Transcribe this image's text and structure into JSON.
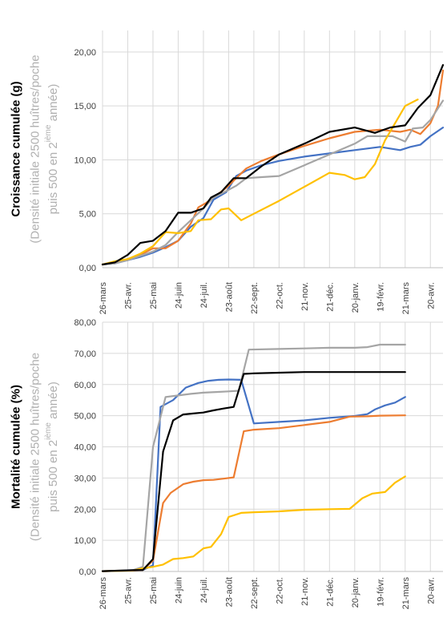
{
  "chart_data": [
    {
      "type": "line",
      "ylabel_main": "Croissance cumulée (g)",
      "ylabel_sub_1": "(Densité initiale 2500 huîtres/poche",
      "ylabel_sub_2a": "puis 500 en 2",
      "ylabel_sub_sup": "ième",
      "ylabel_sub_2b": " année)",
      "ylim": [
        0,
        22
      ],
      "y_ticks": [
        "0,00",
        "5,00",
        "10,00",
        "15,00",
        "20,00"
      ],
      "x_ticks": [
        "26-mars",
        "25-avr.",
        "25-mai",
        "24-juin",
        "24-juil.",
        "23-août",
        "22-sept.",
        "22-oct.",
        "21-nov.",
        "21-déc.",
        "20-janv.",
        "19-févr.",
        "21-mars",
        "20-avr."
      ],
      "grid": true,
      "series": [
        {
          "color": "#4472c4",
          "values": [
            [
              0,
              0.3
            ],
            [
              0.5,
              0.4
            ],
            [
              1.0,
              0.7
            ],
            [
              1.5,
              1.0
            ],
            [
              2.0,
              1.4
            ],
            [
              2.5,
              1.9
            ],
            [
              3.0,
              2.5
            ],
            [
              3.5,
              3.8
            ],
            [
              4.0,
              4.6
            ],
            [
              4.4,
              6.3
            ],
            [
              4.9,
              7.0
            ],
            [
              5.3,
              8.5
            ],
            [
              5.7,
              9.0
            ],
            [
              6.3,
              9.5
            ],
            [
              7.0,
              9.9
            ],
            [
              8.0,
              10.3
            ],
            [
              9.0,
              10.6
            ],
            [
              10.0,
              10.9
            ],
            [
              11.0,
              11.2
            ],
            [
              11.8,
              10.9
            ],
            [
              12.2,
              11.2
            ],
            [
              12.6,
              11.4
            ],
            [
              13.0,
              12.2
            ],
            [
              13.5,
              13.0
            ]
          ]
        },
        {
          "color": "#ed7d31",
          "values": [
            [
              0,
              0.3
            ],
            [
              0.5,
              0.5
            ],
            [
              1.0,
              0.8
            ],
            [
              1.5,
              1.2
            ],
            [
              2.0,
              1.8
            ],
            [
              2.5,
              1.8
            ],
            [
              3.0,
              2.5
            ],
            [
              3.5,
              4.1
            ],
            [
              3.8,
              5.6
            ],
            [
              4.1,
              6.0
            ],
            [
              4.4,
              6.5
            ],
            [
              4.9,
              7.4
            ],
            [
              5.3,
              8.3
            ],
            [
              5.7,
              9.2
            ],
            [
              6.3,
              9.9
            ],
            [
              7.0,
              10.5
            ],
            [
              8.0,
              11.3
            ],
            [
              9.0,
              12.0
            ],
            [
              10.0,
              12.6
            ],
            [
              11.0,
              12.8
            ],
            [
              11.8,
              12.6
            ],
            [
              12.2,
              12.8
            ],
            [
              12.6,
              12.4
            ],
            [
              13.0,
              13.4
            ],
            [
              13.3,
              15.0
            ],
            [
              13.5,
              18.3
            ]
          ]
        },
        {
          "color": "#a5a5a5",
          "values": [
            [
              0,
              0.3
            ],
            [
              0.5,
              0.4
            ],
            [
              1.0,
              0.7
            ],
            [
              1.5,
              1.1
            ],
            [
              2.0,
              1.5
            ],
            [
              2.5,
              2.1
            ],
            [
              3.0,
              3.3
            ],
            [
              3.5,
              4.4
            ],
            [
              4.0,
              5.5
            ],
            [
              4.4,
              6.5
            ],
            [
              4.9,
              7.1
            ],
            [
              5.3,
              7.6
            ],
            [
              5.7,
              8.3
            ],
            [
              6.3,
              8.4
            ],
            [
              7.0,
              8.5
            ],
            [
              8.0,
              9.5
            ],
            [
              9.0,
              10.5
            ],
            [
              10.0,
              11.5
            ],
            [
              10.5,
              12.2
            ],
            [
              11.5,
              12.2
            ],
            [
              12.0,
              11.7
            ],
            [
              12.3,
              12.9
            ],
            [
              12.7,
              13.0
            ],
            [
              13.0,
              13.7
            ],
            [
              13.5,
              15.5
            ]
          ]
        },
        {
          "color": "#ffc000",
          "values": [
            [
              0,
              0.3
            ],
            [
              0.5,
              0.6
            ],
            [
              1.0,
              0.8
            ],
            [
              1.5,
              1.3
            ],
            [
              2.0,
              2.0
            ],
            [
              2.5,
              3.3
            ],
            [
              3.0,
              3.2
            ],
            [
              3.5,
              3.4
            ],
            [
              3.8,
              4.4
            ],
            [
              4.3,
              4.5
            ],
            [
              4.7,
              5.4
            ],
            [
              5.0,
              5.5
            ],
            [
              5.5,
              4.4
            ],
            [
              6.0,
              5.0
            ],
            [
              7.0,
              6.2
            ],
            [
              8.0,
              7.5
            ],
            [
              9.0,
              8.8
            ],
            [
              9.6,
              8.6
            ],
            [
              10.0,
              8.2
            ],
            [
              10.4,
              8.4
            ],
            [
              10.8,
              9.6
            ],
            [
              11.2,
              11.8
            ],
            [
              11.6,
              13.4
            ],
            [
              12.0,
              15.0
            ],
            [
              12.5,
              15.6
            ]
          ]
        },
        {
          "color": "#000000",
          "values": [
            [
              0,
              0.3
            ],
            [
              0.5,
              0.5
            ],
            [
              1.0,
              1.2
            ],
            [
              1.5,
              2.3
            ],
            [
              2.0,
              2.5
            ],
            [
              2.5,
              3.4
            ],
            [
              3.0,
              5.1
            ],
            [
              3.5,
              5.1
            ],
            [
              4.0,
              5.5
            ],
            [
              4.3,
              6.5
            ],
            [
              4.7,
              7.0
            ],
            [
              5.2,
              8.3
            ],
            [
              5.7,
              8.3
            ],
            [
              6.3,
              9.4
            ],
            [
              7.0,
              10.5
            ],
            [
              8.0,
              11.5
            ],
            [
              9.0,
              12.6
            ],
            [
              10.0,
              13.0
            ],
            [
              10.8,
              12.5
            ],
            [
              11.4,
              13.0
            ],
            [
              12.0,
              13.2
            ],
            [
              12.5,
              14.8
            ],
            [
              13.0,
              16.0
            ],
            [
              13.5,
              18.8
            ]
          ]
        }
      ]
    },
    {
      "type": "line",
      "ylabel_main": "Mortalité cumulée (%)",
      "ylabel_sub_1": "(Densité initiale 2500 huîtres/poche",
      "ylabel_sub_2a": "puis 500 en 2",
      "ylabel_sub_sup": "ième",
      "ylabel_sub_2b": " année)",
      "ylim": [
        0,
        80
      ],
      "y_ticks": [
        "0,00",
        "10,00",
        "20,00",
        "30,00",
        "40,00",
        "50,00",
        "60,00",
        "70,00",
        "80,00"
      ],
      "x_ticks": [
        "26-mars",
        "25-avr.",
        "25-mai",
        "24-juin",
        "24-juil.",
        "23-août",
        "22-sept.",
        "22-oct.",
        "21-nov.",
        "21-déc.",
        "20-janv.",
        "19-févr.",
        "21-mars",
        "20-avr."
      ],
      "grid": true,
      "series": [
        {
          "color": "#4472c4",
          "values": [
            [
              0,
              0.1
            ],
            [
              1.2,
              0.3
            ],
            [
              1.6,
              0.5
            ],
            [
              2.0,
              2.0
            ],
            [
              2.3,
              52.8
            ],
            [
              2.8,
              55.0
            ],
            [
              3.3,
              59.0
            ],
            [
              3.8,
              60.5
            ],
            [
              4.2,
              61.2
            ],
            [
              4.6,
              61.5
            ],
            [
              5.0,
              61.6
            ],
            [
              5.5,
              61.5
            ],
            [
              6.0,
              47.5
            ],
            [
              7.0,
              48.0
            ],
            [
              8.0,
              48.5
            ],
            [
              9.0,
              49.3
            ],
            [
              10.0,
              49.9
            ],
            [
              10.5,
              50.5
            ],
            [
              10.8,
              52.0
            ],
            [
              11.2,
              53.3
            ],
            [
              11.6,
              54.2
            ],
            [
              12.0,
              56.0
            ]
          ]
        },
        {
          "color": "#ed7d31",
          "values": [
            [
              0,
              0.1
            ],
            [
              1.2,
              0.3
            ],
            [
              1.6,
              0.5
            ],
            [
              2.0,
              3.5
            ],
            [
              2.4,
              22.0
            ],
            [
              2.7,
              25.2
            ],
            [
              3.2,
              28.0
            ],
            [
              3.6,
              28.8
            ],
            [
              4.0,
              29.3
            ],
            [
              4.4,
              29.4
            ],
            [
              4.8,
              29.8
            ],
            [
              5.2,
              30.2
            ],
            [
              5.6,
              45.0
            ],
            [
              6.0,
              45.5
            ],
            [
              7.0,
              46.0
            ],
            [
              8.0,
              47.0
            ],
            [
              9.0,
              48.0
            ],
            [
              9.8,
              49.7
            ],
            [
              10.5,
              49.8
            ],
            [
              11.0,
              50.0
            ],
            [
              12.0,
              50.1
            ]
          ]
        },
        {
          "color": "#a5a5a5",
          "values": [
            [
              0,
              0.1
            ],
            [
              1.2,
              0.4
            ],
            [
              1.6,
              1.5
            ],
            [
              2.0,
              40.0
            ],
            [
              2.5,
              56.0
            ],
            [
              3.0,
              56.5
            ],
            [
              3.5,
              57.0
            ],
            [
              4.0,
              57.4
            ],
            [
              4.5,
              57.6
            ],
            [
              5.0,
              57.8
            ],
            [
              5.4,
              58.0
            ],
            [
              5.8,
              71.2
            ],
            [
              7.0,
              71.4
            ],
            [
              8.0,
              71.6
            ],
            [
              9.0,
              71.8
            ],
            [
              10.0,
              71.8
            ],
            [
              10.5,
              72.0
            ],
            [
              11.0,
              72.8
            ],
            [
              12.0,
              72.8
            ]
          ]
        },
        {
          "color": "#ffc000",
          "values": [
            [
              0,
              0.1
            ],
            [
              1.2,
              0.3
            ],
            [
              1.6,
              1.0
            ],
            [
              2.0,
              1.5
            ],
            [
              2.4,
              2.2
            ],
            [
              2.8,
              4.0
            ],
            [
              3.2,
              4.3
            ],
            [
              3.6,
              4.8
            ],
            [
              4.0,
              7.4
            ],
            [
              4.3,
              7.9
            ],
            [
              4.7,
              12.0
            ],
            [
              5.0,
              17.5
            ],
            [
              5.5,
              18.8
            ],
            [
              6.0,
              19.0
            ],
            [
              7.0,
              19.3
            ],
            [
              8.0,
              19.8
            ],
            [
              9.0,
              20.0
            ],
            [
              9.8,
              20.1
            ],
            [
              10.3,
              23.5
            ],
            [
              10.7,
              25.0
            ],
            [
              11.2,
              25.5
            ],
            [
              11.6,
              28.5
            ],
            [
              12.0,
              30.5
            ]
          ]
        },
        {
          "color": "#000000",
          "values": [
            [
              0,
              0.1
            ],
            [
              1.2,
              0.4
            ],
            [
              1.6,
              0.5
            ],
            [
              2.0,
              4.0
            ],
            [
              2.4,
              38.5
            ],
            [
              2.8,
              48.5
            ],
            [
              3.2,
              50.4
            ],
            [
              3.6,
              50.7
            ],
            [
              4.0,
              51.0
            ],
            [
              4.4,
              51.7
            ],
            [
              4.8,
              52.3
            ],
            [
              5.2,
              52.8
            ],
            [
              5.6,
              63.4
            ],
            [
              6.0,
              63.6
            ],
            [
              7.0,
              63.8
            ],
            [
              8.0,
              64.0
            ],
            [
              9.0,
              64.0
            ],
            [
              10.0,
              64.0
            ],
            [
              11.0,
              64.0
            ],
            [
              12.0,
              64.0
            ]
          ]
        }
      ]
    }
  ]
}
